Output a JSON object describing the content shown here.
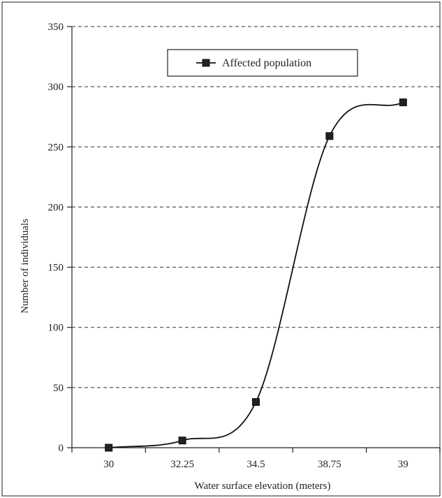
{
  "chart_data": {
    "type": "line",
    "categories": [
      "30",
      "32.25",
      "34.5",
      "38.75",
      "39"
    ],
    "series": [
      {
        "name": "Affected population",
        "values": [
          0,
          6,
          38,
          259,
          287
        ]
      }
    ],
    "xlabel": "Water surface elevation (meters)",
    "ylabel": "Number of individuals",
    "ylim": [
      0,
      350
    ],
    "yticks": [
      "0",
      "50",
      "100",
      "150",
      "200",
      "250",
      "300",
      "350"
    ],
    "grid": "horizontal dashed",
    "legend_position": "top-center",
    "line_style": "smoothed",
    "marker": "square"
  }
}
